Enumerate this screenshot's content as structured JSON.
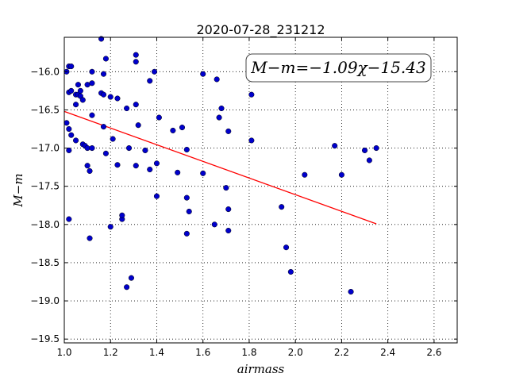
{
  "chart_data": {
    "type": "scatter",
    "title": "2020-07-28_231212",
    "xlabel": "airmass",
    "ylabel": "M−m",
    "xlim": [
      1.0,
      2.7
    ],
    "ylim": [
      -19.55,
      -15.55
    ],
    "y_inverted": true,
    "grid": true,
    "x_ticks": [
      "1.0",
      "1.2",
      "1.4",
      "1.6",
      "1.8",
      "2.0",
      "2.2",
      "2.4",
      "2.6"
    ],
    "y_ticks": [
      "−16.0",
      "−16.5",
      "−17.0",
      "−17.5",
      "−18.0",
      "−18.5",
      "−19.0",
      "−19.5"
    ],
    "annotation": "M−m=−1.09χ−15.43",
    "fit": {
      "slope": -1.09,
      "intercept": -15.43,
      "x_range": [
        1.0,
        2.35
      ],
      "color": "#ff0000"
    },
    "marker_color": "#0000cc",
    "points": [
      [
        1.01,
        -16.0
      ],
      [
        1.02,
        -15.93
      ],
      [
        1.03,
        -15.93
      ],
      [
        1.02,
        -16.27
      ],
      [
        1.03,
        -16.25
      ],
      [
        1.01,
        -16.67
      ],
      [
        1.02,
        -16.75
      ],
      [
        1.03,
        -16.83
      ],
      [
        1.02,
        -17.03
      ],
      [
        1.05,
        -16.43
      ],
      [
        1.05,
        -16.9
      ],
      [
        1.05,
        -16.3
      ],
      [
        1.06,
        -16.17
      ],
      [
        1.06,
        -16.3
      ],
      [
        1.07,
        -16.25
      ],
      [
        1.07,
        -16.32
      ],
      [
        1.08,
        -16.37
      ],
      [
        1.08,
        -16.95
      ],
      [
        1.09,
        -16.97
      ],
      [
        1.1,
        -17.0
      ],
      [
        1.1,
        -16.17
      ],
      [
        1.12,
        -16.15
      ],
      [
        1.12,
        -16.57
      ],
      [
        1.12,
        -16.0
      ],
      [
        1.12,
        -17.0
      ],
      [
        1.1,
        -17.23
      ],
      [
        1.11,
        -17.3
      ],
      [
        1.16,
        -15.57
      ],
      [
        1.18,
        -15.83
      ],
      [
        1.17,
        -16.03
      ],
      [
        1.16,
        -16.28
      ],
      [
        1.17,
        -16.3
      ],
      [
        1.17,
        -16.72
      ],
      [
        1.2,
        -16.33
      ],
      [
        1.18,
        -17.07
      ],
      [
        1.21,
        -16.88
      ],
      [
        1.23,
        -16.35
      ],
      [
        1.23,
        -17.22
      ],
      [
        1.27,
        -16.48
      ],
      [
        1.28,
        -17.0
      ],
      [
        1.31,
        -15.78
      ],
      [
        1.31,
        -15.87
      ],
      [
        1.31,
        -16.43
      ],
      [
        1.32,
        -16.7
      ],
      [
        1.31,
        -17.23
      ],
      [
        1.35,
        -17.03
      ],
      [
        1.37,
        -16.12
      ],
      [
        1.37,
        -17.28
      ],
      [
        1.39,
        -16.0
      ],
      [
        1.41,
        -16.6
      ],
      [
        1.4,
        -17.2
      ],
      [
        1.4,
        -17.63
      ],
      [
        1.47,
        -16.77
      ],
      [
        1.49,
        -17.32
      ],
      [
        1.51,
        -16.73
      ],
      [
        1.53,
        -17.02
      ],
      [
        1.53,
        -17.65
      ],
      [
        1.54,
        -17.83
      ],
      [
        1.53,
        -18.12
      ],
      [
        1.6,
        -16.03
      ],
      [
        1.6,
        -17.33
      ],
      [
        1.66,
        -16.1
      ],
      [
        1.67,
        -16.6
      ],
      [
        1.68,
        -16.48
      ],
      [
        1.71,
        -16.78
      ],
      [
        1.7,
        -17.52
      ],
      [
        1.71,
        -17.8
      ],
      [
        1.71,
        -18.08
      ],
      [
        1.65,
        -18.0
      ],
      [
        1.81,
        -16.3
      ],
      [
        1.81,
        -16.9
      ],
      [
        1.94,
        -17.77
      ],
      [
        1.96,
        -18.3
      ],
      [
        1.98,
        -18.62
      ],
      [
        2.04,
        -17.35
      ],
      [
        2.17,
        -16.97
      ],
      [
        2.2,
        -17.35
      ],
      [
        2.3,
        -17.03
      ],
      [
        2.32,
        -17.16
      ],
      [
        2.35,
        -17.0
      ],
      [
        2.24,
        -18.88
      ],
      [
        1.02,
        -17.93
      ],
      [
        1.11,
        -18.18
      ],
      [
        1.2,
        -18.03
      ],
      [
        1.25,
        -17.93
      ],
      [
        1.25,
        -17.88
      ],
      [
        1.29,
        -18.7
      ],
      [
        1.27,
        -18.82
      ]
    ]
  }
}
